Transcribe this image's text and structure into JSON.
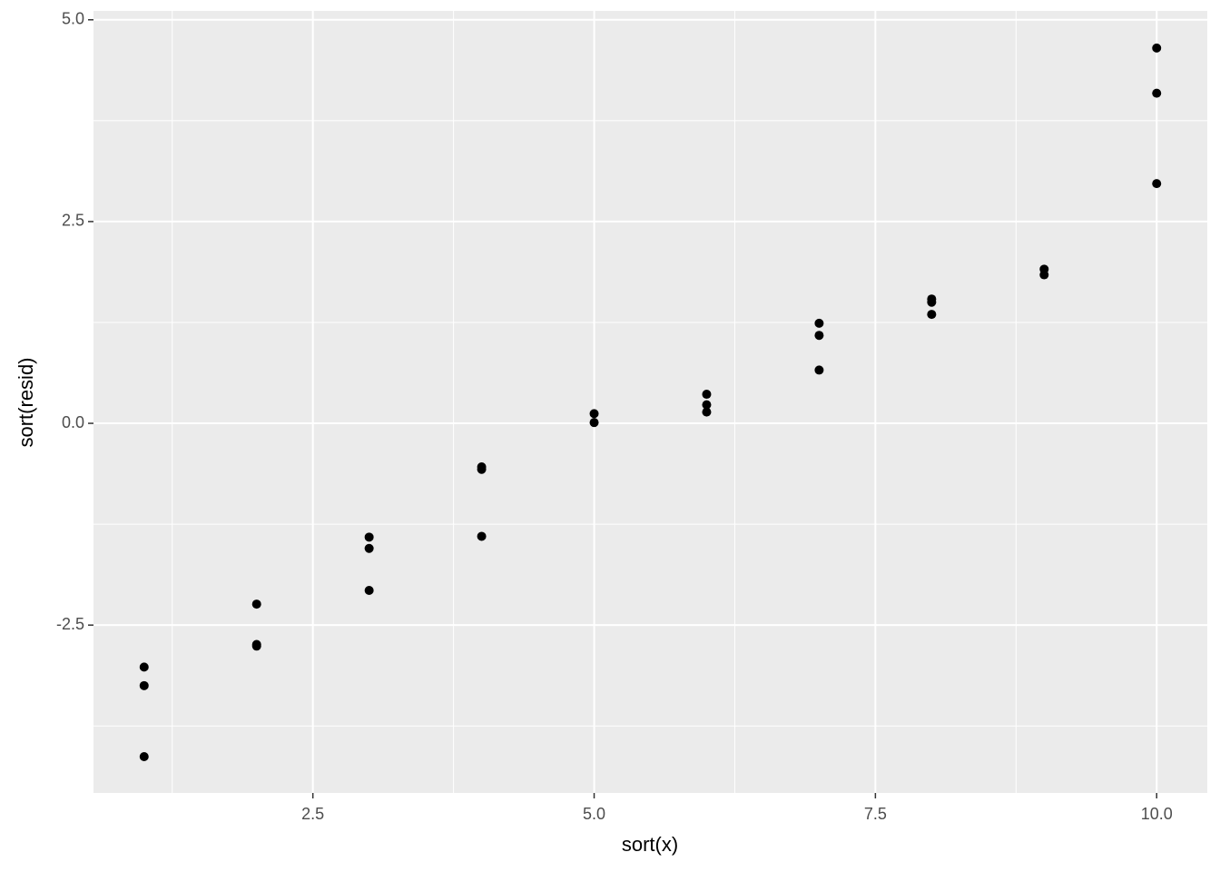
{
  "chart_data": {
    "type": "scatter",
    "x_label": "sort(x)",
    "y_label": "sort(resid)",
    "x": [
      1,
      1,
      1,
      2,
      2,
      2,
      3,
      3,
      3,
      4,
      4,
      4,
      5,
      5,
      6,
      6,
      6,
      7,
      7,
      7,
      8,
      8,
      8,
      9,
      9,
      10,
      10,
      10
    ],
    "values": [
      -3.02,
      -3.25,
      -4.13,
      -2.24,
      -2.74,
      -2.76,
      -1.41,
      -1.55,
      -2.07,
      -0.54,
      -0.57,
      -1.4,
      0.12,
      0.01,
      0.36,
      0.23,
      0.14,
      1.24,
      1.09,
      0.66,
      1.54,
      1.5,
      1.35,
      1.91,
      1.84,
      4.65,
      4.09,
      2.97
    ],
    "color": "#000000",
    "xlim": [
      0.55,
      10.45
    ],
    "ylim": [
      -4.58,
      5.11
    ],
    "xticks": [
      {
        "value": 2.5,
        "label": "2.5"
      },
      {
        "value": 5,
        "label": "5.0"
      },
      {
        "value": 7.5,
        "label": "7.5"
      },
      {
        "value": 10,
        "label": "10.0"
      }
    ],
    "yticks": [
      {
        "value": -2.5,
        "label": "-2.5"
      },
      {
        "value": 0,
        "label": "0.0"
      },
      {
        "value": 2.5,
        "label": "2.5"
      },
      {
        "value": 5,
        "label": "5.0"
      }
    ],
    "x_minor_ticks": [
      1.25,
      3.75,
      6.25,
      8.75
    ],
    "y_minor_ticks": [
      -3.75,
      -1.25,
      1.25,
      3.75
    ],
    "grid": true
  }
}
